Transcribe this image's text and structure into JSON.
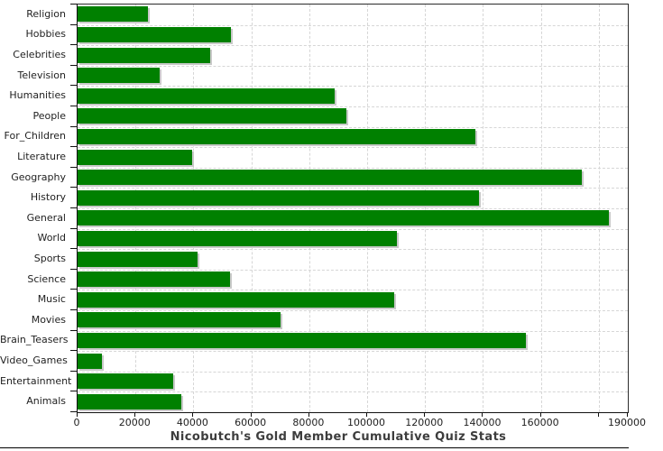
{
  "chart_data": {
    "type": "bar",
    "orientation": "horizontal",
    "title": "Nicobutch's Gold Member Cumulative Quiz Stats",
    "categories": [
      "Religion",
      "Hobbies",
      "Celebrities",
      "Television",
      "Humanities",
      "People",
      "For_Children",
      "Literature",
      "Geography",
      "History",
      "General",
      "World",
      "Sports",
      "Science",
      "Music",
      "Movies",
      "Brain_Teasers",
      "Video_Games",
      "Entertainment",
      "Animals"
    ],
    "values": [
      24300,
      53100,
      45900,
      28200,
      88700,
      92900,
      137400,
      39600,
      174100,
      138600,
      183600,
      110200,
      41400,
      52600,
      109300,
      70200,
      154900,
      8400,
      33000,
      35700
    ],
    "xlim": [
      0,
      190000
    ],
    "x_tick_interval": 20000,
    "x_tick_labels": [
      "0",
      "20000",
      "40000",
      "60000",
      "80000",
      "100000",
      "120000",
      "140000",
      "160000"
    ],
    "x_end_tick_label": "190000",
    "grid": true,
    "legend": "none",
    "colors": {
      "bar": "#008000",
      "bar_shadow": "#c9c9c9",
      "grid": "#d6d6d6",
      "axis": "#111111",
      "tick_label": "#1f1f1f",
      "title": "#3d3d3d"
    }
  }
}
